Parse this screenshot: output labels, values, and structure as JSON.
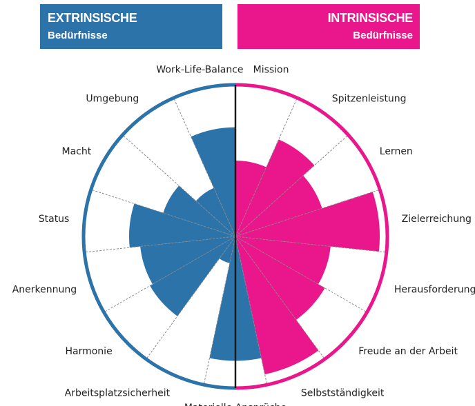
{
  "header_left": {
    "title": "EXTRINSISCHE",
    "subtitle": "Bedürfnisse",
    "color": "#2c73a9"
  },
  "header_right": {
    "title": "INTRINSISCHE",
    "subtitle": "Bedürfnisse",
    "color": "#e9168c"
  },
  "chart_data": {
    "type": "polar-area",
    "scale_max": 10,
    "colors": {
      "extrinsic": "#2c73a9",
      "intrinsic": "#e9168c",
      "empty": "#ffffff",
      "grid": "#8a8a8a"
    },
    "categories": [
      {
        "label": "Mission",
        "group": "intrinsic",
        "value": 5
      },
      {
        "label": "Spitzenleistung",
        "group": "intrinsic",
        "value": 7
      },
      {
        "label": "Lernen",
        "group": "intrinsic",
        "value": 6
      },
      {
        "label": "Zielerreichung",
        "group": "intrinsic",
        "value": 9.5
      },
      {
        "label": "Herausforderung",
        "group": "intrinsic",
        "value": 6.3
      },
      {
        "label": "Freude an der Arbeit",
        "group": "intrinsic",
        "value": 6.8
      },
      {
        "label": "Selbstständigkeit",
        "group": "intrinsic",
        "value": 9.3
      },
      {
        "label": "Materielle Ansprüche",
        "group": "extrinsic",
        "value": 8.2
      },
      {
        "label": "Arbeitsplatzsicherheit",
        "group": "extrinsic",
        "value": 1.8
      },
      {
        "label": "Harmonie",
        "group": "extrinsic",
        "value": 6.5
      },
      {
        "label": "Anerkennung",
        "group": "extrinsic",
        "value": 6.3
      },
      {
        "label": "Status",
        "group": "extrinsic",
        "value": 7
      },
      {
        "label": "Macht",
        "group": "extrinsic",
        "value": 5
      },
      {
        "label": "Umgebung",
        "group": "extrinsic",
        "value": 3.5
      },
      {
        "label": "Work-Life-Balance",
        "group": "extrinsic",
        "value": 7.2
      }
    ]
  }
}
